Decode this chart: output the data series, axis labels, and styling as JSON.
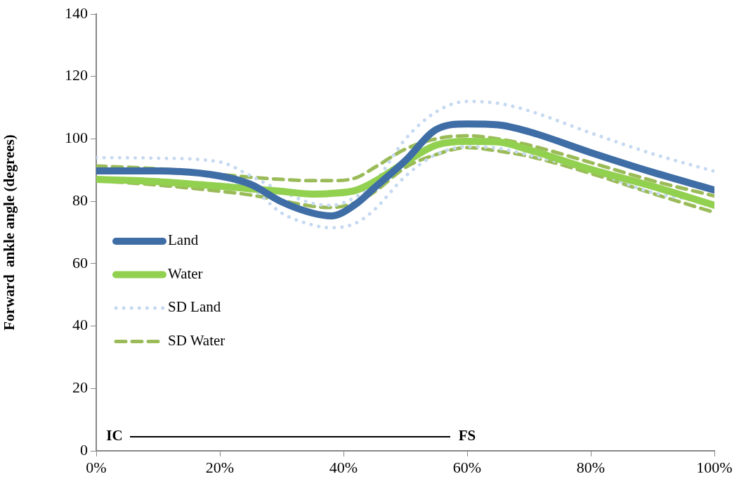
{
  "chart_data": {
    "type": "line",
    "ylabel": "Forward  ankle angle (degrees)",
    "x": [
      0,
      10,
      20,
      25,
      30,
      35,
      38,
      42,
      45,
      50,
      55,
      60,
      65,
      70,
      80,
      90,
      100
    ],
    "xlim": [
      0,
      100
    ],
    "xticks": [
      {
        "value": 0,
        "label": "0%"
      },
      {
        "value": 20,
        "label": "20%"
      },
      {
        "value": 40,
        "label": "40%"
      },
      {
        "value": 60,
        "label": "60%"
      },
      {
        "value": 80,
        "label": "80%"
      },
      {
        "value": 100,
        "label": "100%"
      }
    ],
    "ylim": [
      0,
      140
    ],
    "yticks": [
      0,
      20,
      40,
      60,
      80,
      100,
      120,
      140
    ],
    "grid": false,
    "legend": "left",
    "marker": "none",
    "series": [
      {
        "name": "Land",
        "color": "#3f6da5",
        "line_style": "solid",
        "values": [
          89.7,
          89.7,
          88.1,
          85.4,
          79.8,
          76.2,
          75.3,
          79.1,
          84.3,
          93,
          103,
          104.8,
          104.5,
          102.3,
          95.6,
          89.3,
          83.6
        ]
      },
      {
        "name": "Water",
        "color": "#92d050",
        "line_style": "solid",
        "values": [
          87,
          86.3,
          84.8,
          84,
          83.2,
          82.3,
          82.5,
          83.5,
          86.3,
          92.5,
          98,
          99.2,
          99,
          96.5,
          90.2,
          84.8,
          78.7
        ]
      },
      {
        "name": "SD Land",
        "color": "#c6d9f1",
        "line_style": "dotted",
        "values": [
          94,
          93.8,
          92.6,
          88.1,
          83.2,
          79.3,
          78.7,
          81.4,
          86,
          99.9,
          108.7,
          112,
          111.4,
          109,
          101.9,
          95.2,
          89.6
        ]
      },
      {
        "color": "#c6d9f1",
        "line_style": "dotted",
        "values": [
          86.6,
          85.9,
          85.4,
          84,
          76.2,
          72.4,
          71.5,
          73,
          77.3,
          88,
          95,
          97.5,
          97,
          94.8,
          89.8,
          82.8,
          79.5
        ]
      },
      {
        "name": "SD Water",
        "color": "#9bbb59",
        "line_style": "dashed",
        "values": [
          91.3,
          90.4,
          88.6,
          87.7,
          87,
          86.6,
          86.6,
          87.5,
          90.8,
          96.7,
          100,
          101,
          100,
          98,
          92.4,
          86.6,
          81.7
        ]
      },
      {
        "color": "#9bbb59",
        "line_style": "dashed",
        "values": [
          86.6,
          85.2,
          83.2,
          82,
          80.2,
          78.4,
          78,
          79.6,
          83,
          90.8,
          95,
          97.2,
          96.1,
          94.4,
          88.9,
          82.5,
          76.4
        ]
      }
    ],
    "annotations": [
      "IC",
      "FS"
    ]
  }
}
